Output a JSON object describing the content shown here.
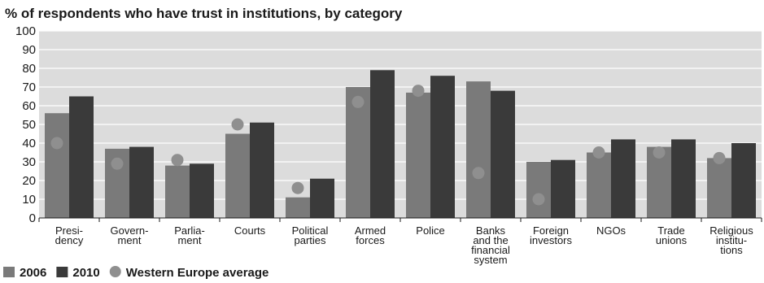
{
  "chart_data": {
    "type": "bar",
    "title": "% of respondents who have trust in institutions, by category",
    "xlabel": "",
    "ylabel": "",
    "ylim": [
      0,
      100
    ],
    "yticks": [
      0,
      10,
      20,
      30,
      40,
      50,
      60,
      70,
      80,
      90,
      100
    ],
    "grid": true,
    "legend_position": "bottom-left",
    "categories": [
      [
        "Presi-",
        "dency"
      ],
      [
        "Govern-",
        "ment"
      ],
      [
        "Parlia-",
        "ment"
      ],
      [
        "Courts"
      ],
      [
        "Political",
        "parties"
      ],
      [
        "Armed",
        "forces"
      ],
      [
        "Police"
      ],
      [
        "Banks",
        "and the",
        "financial",
        "system"
      ],
      [
        "Foreign",
        "investors"
      ],
      [
        "NGOs"
      ],
      [
        "Trade",
        "unions"
      ],
      [
        "Religious",
        "institu-",
        "tions"
      ]
    ],
    "series": [
      {
        "name": "2006",
        "type": "bar",
        "color": "#7a7a7a",
        "values": [
          56,
          37,
          28,
          45,
          11,
          70,
          67,
          73,
          30,
          35,
          38,
          32
        ]
      },
      {
        "name": "2010",
        "type": "bar",
        "color": "#3a3a3a",
        "values": [
          65,
          38,
          29,
          51,
          21,
          79,
          76,
          68,
          31,
          42,
          42,
          40
        ]
      },
      {
        "name": "Western Europe average",
        "type": "point",
        "color": "#8f8f8f",
        "values": [
          40,
          29,
          31,
          50,
          16,
          62,
          68,
          24,
          10,
          35,
          35,
          32
        ]
      }
    ]
  }
}
